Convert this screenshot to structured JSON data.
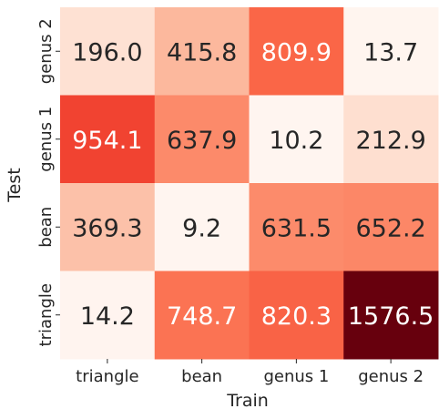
{
  "chart_data": {
    "type": "heatmap",
    "title": "",
    "xlabel": "Train",
    "ylabel": "Test",
    "x_categories": [
      "triangle",
      "bean",
      "genus 1",
      "genus 2"
    ],
    "y_categories": [
      "genus 2",
      "genus 1",
      "bean",
      "triangle"
    ],
    "values": [
      [
        196.0,
        415.8,
        809.9,
        13.7
      ],
      [
        954.1,
        637.9,
        10.2,
        212.9
      ],
      [
        369.3,
        9.2,
        631.5,
        652.2
      ],
      [
        14.2,
        748.7,
        820.3,
        1576.5
      ]
    ],
    "value_labels": [
      [
        "196.0",
        "415.8",
        "809.9",
        "13.7"
      ],
      [
        "954.1",
        "637.9",
        "10.2",
        "212.9"
      ],
      [
        "369.3",
        "9.2",
        "631.5",
        "652.2"
      ],
      [
        "14.2",
        "748.7",
        "820.3",
        "1576.5"
      ]
    ],
    "colormap": "Reds",
    "vmin": 9.2,
    "vmax": 1576.5,
    "colorbar": false,
    "grid": false
  }
}
